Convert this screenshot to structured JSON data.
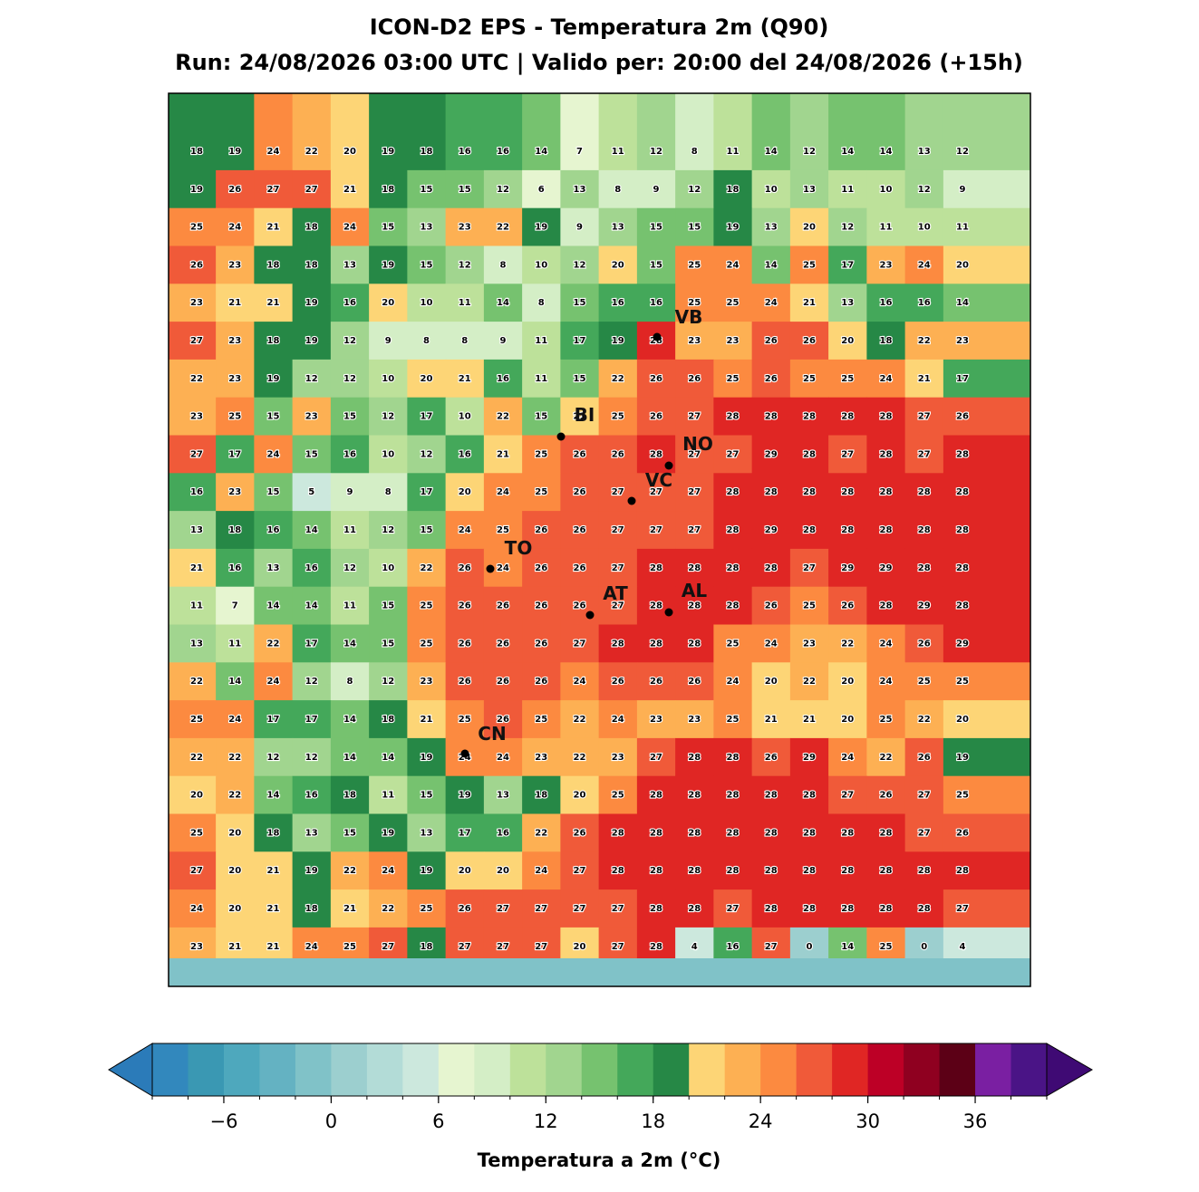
{
  "title": [
    "ICON-D2 EPS - Temperatura 2m (Q90)",
    "Run: 24/08/2026 03:00 UTC | Valido per: 20:00 del 24/08/2026 (+15h)"
  ],
  "grid": [
    [
      18,
      19,
      24,
      22,
      20,
      19,
      18,
      16,
      16,
      14,
      7,
      11,
      12,
      8,
      11,
      14,
      12,
      14,
      14,
      13,
      12
    ],
    [
      19,
      26,
      27,
      27,
      21,
      18,
      15,
      15,
      12,
      6,
      13,
      8,
      9,
      12,
      18,
      10,
      13,
      11,
      10,
      12,
      9
    ],
    [
      25,
      24,
      21,
      18,
      24,
      15,
      13,
      23,
      22,
      19,
      9,
      13,
      15,
      15,
      19,
      13,
      20,
      12,
      11,
      10,
      11
    ],
    [
      26,
      23,
      18,
      18,
      13,
      19,
      15,
      12,
      8,
      10,
      12,
      20,
      15,
      25,
      24,
      14,
      25,
      17,
      23,
      24,
      20
    ],
    [
      23,
      21,
      21,
      19,
      16,
      20,
      10,
      11,
      14,
      8,
      15,
      16,
      16,
      25,
      25,
      24,
      21,
      13,
      16,
      16,
      14
    ],
    [
      27,
      23,
      18,
      19,
      12,
      9,
      8,
      8,
      9,
      11,
      17,
      19,
      28,
      23,
      23,
      26,
      26,
      20,
      18,
      22,
      23
    ],
    [
      22,
      23,
      19,
      12,
      12,
      10,
      20,
      21,
      16,
      11,
      15,
      22,
      26,
      26,
      25,
      26,
      25,
      25,
      24,
      21,
      17
    ],
    [
      23,
      25,
      15,
      23,
      15,
      12,
      17,
      10,
      22,
      15,
      21,
      25,
      26,
      27,
      28,
      28,
      28,
      28,
      28,
      27,
      26
    ],
    [
      27,
      17,
      24,
      15,
      16,
      10,
      12,
      16,
      21,
      25,
      26,
      26,
      28,
      27,
      27,
      29,
      28,
      27,
      28,
      27,
      28
    ],
    [
      16,
      23,
      15,
      5,
      9,
      8,
      17,
      20,
      24,
      25,
      26,
      27,
      27,
      27,
      28,
      28,
      28,
      28,
      28,
      28,
      28
    ],
    [
      13,
      18,
      16,
      14,
      11,
      12,
      15,
      24,
      25,
      26,
      26,
      27,
      27,
      27,
      28,
      29,
      28,
      28,
      28,
      28,
      28
    ],
    [
      21,
      16,
      13,
      16,
      12,
      10,
      22,
      26,
      24,
      26,
      26,
      27,
      28,
      28,
      28,
      28,
      27,
      29,
      29,
      28,
      28
    ],
    [
      11,
      7,
      14,
      14,
      11,
      15,
      25,
      26,
      26,
      26,
      26,
      27,
      28,
      28,
      28,
      26,
      25,
      26,
      28,
      29,
      28
    ],
    [
      13,
      11,
      22,
      17,
      14,
      15,
      25,
      26,
      26,
      26,
      27,
      28,
      28,
      28,
      25,
      24,
      23,
      22,
      24,
      26,
      29
    ],
    [
      22,
      14,
      24,
      12,
      8,
      12,
      23,
      26,
      26,
      26,
      24,
      26,
      26,
      26,
      24,
      20,
      22,
      20,
      24,
      25,
      25
    ],
    [
      25,
      24,
      17,
      17,
      14,
      18,
      21,
      25,
      26,
      25,
      22,
      24,
      23,
      23,
      25,
      21,
      21,
      20,
      25,
      22,
      20
    ],
    [
      22,
      22,
      12,
      12,
      14,
      14,
      19,
      24,
      24,
      23,
      22,
      23,
      27,
      28,
      28,
      26,
      29,
      24,
      22,
      26,
      19
    ],
    [
      20,
      22,
      14,
      16,
      18,
      11,
      15,
      19,
      13,
      18,
      20,
      25,
      28,
      28,
      28,
      28,
      28,
      27,
      26,
      27,
      25
    ],
    [
      25,
      20,
      18,
      13,
      15,
      19,
      13,
      17,
      16,
      22,
      26,
      28,
      28,
      28,
      28,
      28,
      28,
      28,
      28,
      27,
      26
    ],
    [
      27,
      20,
      21,
      19,
      22,
      24,
      19,
      20,
      20,
      24,
      27,
      28,
      28,
      28,
      28,
      28,
      28,
      28,
      28,
      28,
      28
    ],
    [
      24,
      20,
      21,
      18,
      21,
      22,
      25,
      26,
      27,
      27,
      27,
      27,
      28,
      28,
      27,
      28,
      28,
      28,
      28,
      28,
      27
    ],
    [
      23,
      21,
      21,
      24,
      25,
      27,
      18,
      27,
      27,
      27,
      20,
      27,
      28,
      4,
      16,
      27,
      0,
      14,
      25,
      0,
      4
    ]
  ],
  "cities": [
    "VB",
    "BI",
    "NO",
    "VC",
    "TO",
    "AT",
    "AL",
    "CN"
  ],
  "colorbar": {
    "label": "Temperatura a 2m (°C)",
    "boundaries": [
      -10,
      -8,
      -6,
      -4,
      -2,
      0,
      2,
      4,
      6,
      8,
      10,
      12,
      14,
      16,
      18,
      20,
      22,
      24,
      26,
      28,
      30,
      32,
      34,
      36,
      38,
      40
    ],
    "colors": [
      "#3288bd",
      "#3a98b3",
      "#4ea8bd",
      "#64b2c2",
      "#80c2c8",
      "#9ccfcf",
      "#b3dcd7",
      "#cce8dd",
      "#e6f5d0",
      "#d4eec6",
      "#bde19a",
      "#a1d58f",
      "#76c26f",
      "#44a85a",
      "#268846",
      "#fdd576",
      "#fdb053",
      "#fc8a40",
      "#f05a39",
      "#e02624",
      "#bd0026",
      "#8f0020",
      "#5c0016",
      "#7a1fa2",
      "#4a1486"
    ],
    "under_color": "#2b7bb9",
    "over_color": "#3f0a74",
    "ticks": [
      {
        "value": -6,
        "label": "−6"
      },
      0,
      6,
      12,
      18,
      24,
      30,
      36
    ]
  }
}
